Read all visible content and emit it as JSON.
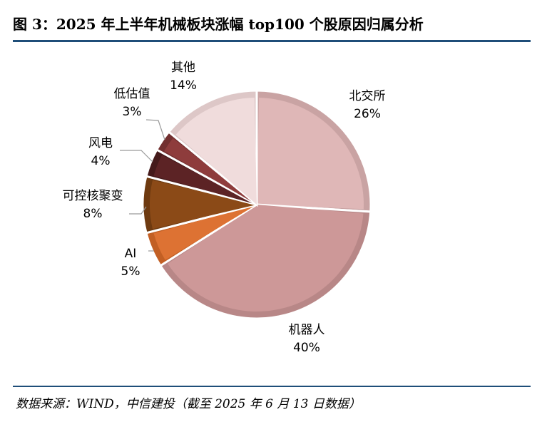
{
  "title": "图 3：2025 年上半年机械板块涨幅 top100 个股原因归属分析",
  "source": "数据来源：WIND，中信建投（截至 2025 年 6 月 13 日数据）",
  "chart_data": {
    "type": "pie",
    "title": "",
    "slices": [
      {
        "name": "北交所",
        "value": 26,
        "label": "26%",
        "color": "#dfb7b7",
        "ring": "#c9a3a3"
      },
      {
        "name": "机器人",
        "value": 40,
        "label": "40%",
        "color": "#cd9898",
        "ring": "#b88787"
      },
      {
        "name": "AI",
        "value": 5,
        "label": "5%",
        "color": "#dd7233",
        "ring": "#c25f24"
      },
      {
        "name": "可控核聚变",
        "value": 8,
        "label": "8%",
        "color": "#8b4a17",
        "ring": "#6e3a10"
      },
      {
        "name": "风电",
        "value": 4,
        "label": "4%",
        "color": "#5c2325",
        "ring": "#451a1b"
      },
      {
        "name": "低估值",
        "value": 3,
        "label": "3%",
        "color": "#8e3c3c",
        "ring": "#722f2f"
      },
      {
        "name": "其他",
        "value": 14,
        "label": "14%",
        "color": "#f0dcdc",
        "ring": "#ddc7c7"
      }
    ]
  }
}
